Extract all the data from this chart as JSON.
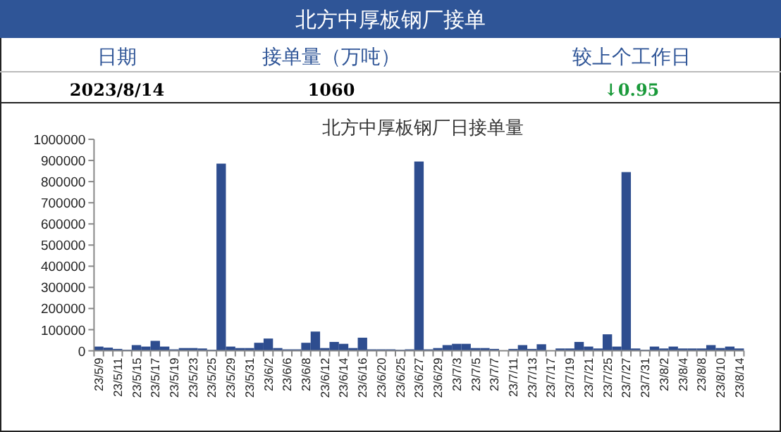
{
  "chart_data": {
    "type": "bar",
    "title": "北方中厚板钢厂接单",
    "subtitle": "北方中厚板钢厂日接单量",
    "annotations": [
      "日期",
      "接单量（万吨）",
      "较上个工作日",
      "2023/8/14",
      "1060",
      "↓0.95"
    ],
    "categories": [
      "23/5/9",
      null,
      "23/5/11",
      null,
      "23/5/15",
      null,
      "23/5/17",
      null,
      "23/5/19",
      null,
      "23/5/23",
      null,
      "23/5/25",
      null,
      "23/5/29",
      null,
      "23/5/31",
      null,
      "23/6/2",
      null,
      "23/6/6",
      null,
      "23/6/8",
      null,
      "23/6/12",
      null,
      "23/6/14",
      null,
      "23/6/16",
      null,
      "23/6/20",
      null,
      "23/6/25",
      null,
      "23/6/27",
      null,
      "23/6/29",
      null,
      "23/7/3",
      null,
      "23/7/5",
      null,
      "23/7/7",
      null,
      "23/7/11",
      null,
      "23/7/13",
      null,
      "23/7/17",
      null,
      "23/7/19",
      null,
      "23/7/21",
      null,
      "23/7/25",
      null,
      "23/7/27",
      null,
      "23/7/31",
      null,
      "23/8/2",
      null,
      "23/8/4",
      null,
      "23/8/8",
      null,
      "23/8/10",
      null,
      "23/8/14"
    ],
    "values": [
      20000,
      15000,
      9000,
      5000,
      27000,
      20000,
      47000,
      20000,
      7000,
      13000,
      13000,
      11000,
      5000,
      885000,
      20000,
      13000,
      13000,
      38000,
      58000,
      13000,
      7000,
      7000,
      38000,
      91000,
      13000,
      42000,
      33000,
      13000,
      62000,
      7000,
      7000,
      7000,
      5000,
      7000,
      895000,
      7000,
      13000,
      27000,
      33000,
      33000,
      13000,
      13000,
      9000,
      2000,
      9000,
      27000,
      9000,
      31000,
      2000,
      11000,
      11000,
      42000,
      20000,
      11000,
      78000,
      20000,
      845000,
      11000,
      5000,
      20000,
      11000,
      20000,
      11000,
      11000,
      11000,
      27000,
      13000,
      20000,
      11000
    ],
    "color": "#2e4d8f",
    "ylim": [
      0,
      1000000
    ],
    "yticks": [
      0,
      100000,
      200000,
      300000,
      400000,
      500000,
      600000,
      700000,
      800000,
      900000,
      1000000
    ]
  }
}
